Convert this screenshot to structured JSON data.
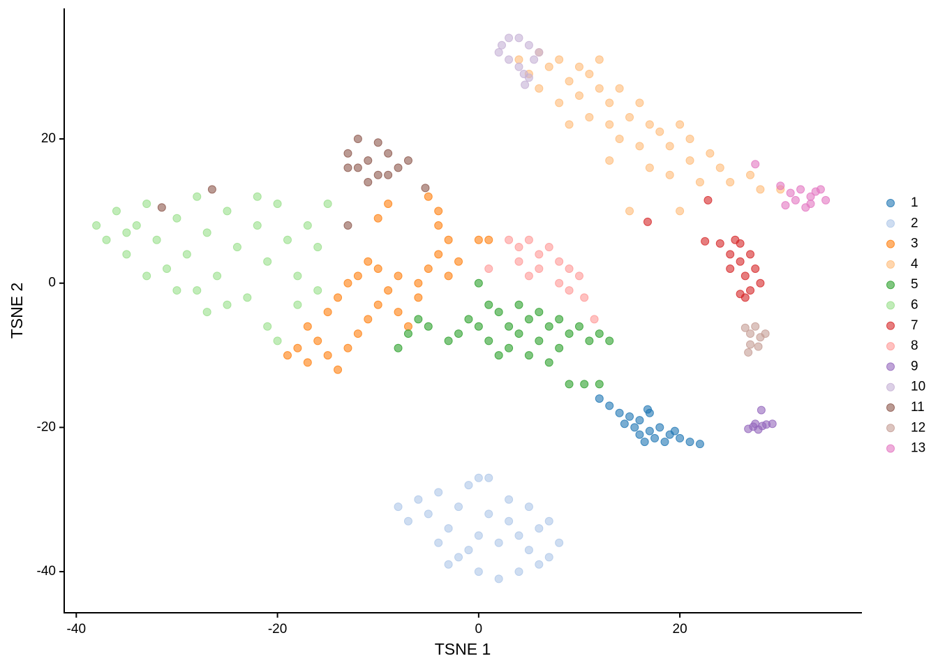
{
  "chart_data": {
    "type": "scatter",
    "x_label": "TSNE 1",
    "y_label": "TSNE 2",
    "xlim": [
      -41.2,
      38.1
    ],
    "ylim": [
      -45.7,
      38.1
    ],
    "xticks": [
      -40,
      -20,
      0,
      20
    ],
    "yticks": [
      -40,
      -20,
      0,
      20
    ],
    "legend": "right",
    "series": [
      {
        "name": "1",
        "color": "#1f77b4",
        "x": [
          12,
          13,
          14,
          14.5,
          15,
          15.5,
          16,
          16,
          16.5,
          17,
          17,
          17.5,
          18,
          18.5,
          19,
          19.5,
          20,
          21,
          22,
          16.8
        ],
        "y": [
          -16,
          -17,
          -18,
          -19.5,
          -18.5,
          -20,
          -21,
          -19,
          -22,
          -20.5,
          -18,
          -21.5,
          -20,
          -22,
          -21,
          -20.5,
          -21.5,
          -22,
          -22.3,
          -17.5
        ]
      },
      {
        "name": "2",
        "color": "#aec7e8",
        "x": [
          -8,
          -7,
          -6,
          -5,
          -4,
          -3,
          -2,
          -1,
          0,
          1,
          -4,
          -2,
          0,
          2,
          4,
          6,
          7,
          8,
          7,
          5,
          3,
          1,
          0,
          2,
          4,
          5,
          -1,
          -3,
          3,
          6
        ],
        "y": [
          -31,
          -33,
          -30,
          -32,
          -29,
          -34,
          -31,
          -28,
          -27,
          -27,
          -36,
          -38,
          -40,
          -41,
          -40,
          -39,
          -38,
          -36,
          -33,
          -31,
          -30,
          -32,
          -35,
          -36,
          -35,
          -37,
          -37,
          -39,
          -33,
          -34
        ]
      },
      {
        "name": "3",
        "color": "#ff7f0e",
        "x": [
          -19,
          -18,
          -17,
          -16,
          -15,
          -14,
          -13,
          -12,
          -11,
          -10,
          -9,
          -8,
          -7,
          -15,
          -14,
          -13,
          -12,
          -11,
          -10,
          -8,
          -6,
          -5,
          -4,
          -3,
          -4,
          -4,
          -5,
          -3,
          -2,
          0,
          1,
          -10,
          -9,
          -6,
          -17
        ],
        "y": [
          -10,
          -9,
          -11,
          -8,
          -10,
          -12,
          -9,
          -7,
          -5,
          -3,
          -1,
          -4,
          -6,
          -4,
          -2,
          0,
          1,
          3,
          2,
          1,
          0,
          2,
          4,
          6,
          8,
          10,
          12,
          1,
          3,
          6,
          6,
          9,
          11,
          -2,
          -6
        ]
      },
      {
        "name": "4",
        "color": "#ffbb78",
        "x": [
          4,
          5,
          6,
          7,
          8,
          9,
          10,
          11,
          12,
          6,
          8,
          10,
          12,
          13,
          14,
          9,
          11,
          13,
          15,
          16,
          17,
          14,
          16,
          18,
          19,
          20,
          21,
          17,
          19,
          21,
          23,
          24,
          22,
          25,
          27,
          28,
          30,
          13,
          15,
          20
        ],
        "y": [
          31,
          29,
          32,
          30,
          31,
          28,
          30,
          29,
          31,
          27,
          25,
          26,
          27,
          25,
          27,
          22,
          23,
          22,
          23,
          25,
          22,
          20,
          19,
          21,
          19,
          22,
          20,
          16,
          15,
          17,
          18,
          16,
          14,
          14,
          15,
          13,
          13,
          17,
          10,
          10
        ]
      },
      {
        "name": "5",
        "color": "#2ca02c",
        "x": [
          -8,
          -7,
          -6,
          -5,
          -3,
          -2,
          -1,
          0,
          1,
          1,
          2,
          2,
          3,
          3,
          4,
          4,
          5,
          5,
          6,
          6,
          7,
          7,
          8,
          8,
          9,
          10,
          11,
          12,
          13,
          9,
          10.5,
          12,
          0
        ],
        "y": [
          -9,
          -7,
          -5,
          -6,
          -8,
          -7,
          -5,
          -6,
          -3,
          -8,
          -4,
          -10,
          -6,
          -9,
          -3,
          -7,
          -5,
          -10,
          -4,
          -8,
          -6,
          -11,
          -5,
          -9,
          -7,
          -6,
          -8,
          -7,
          -8,
          -14,
          -14,
          -14,
          0
        ]
      },
      {
        "name": "6",
        "color": "#98df8a",
        "x": [
          -38,
          -37,
          -36,
          -35,
          -34,
          -33,
          -32,
          -31,
          -30,
          -29,
          -28,
          -28,
          -27,
          -26,
          -25,
          -24,
          -23,
          -22,
          -21,
          -20,
          -19,
          -18,
          -17,
          -16,
          -30,
          -27,
          -25,
          -33,
          -35,
          -22,
          -20,
          -21,
          -18,
          -16,
          -15
        ],
        "y": [
          8,
          6,
          10,
          4,
          8,
          11,
          6,
          2,
          9,
          4,
          12,
          -1,
          7,
          1,
          10,
          5,
          -2,
          8,
          3,
          11,
          6,
          1,
          8,
          5,
          -1,
          -4,
          -3,
          1,
          7,
          12,
          -8,
          -6,
          -3,
          -1,
          11
        ]
      },
      {
        "name": "7",
        "color": "#d62728",
        "x": [
          22.5,
          24,
          25,
          25.5,
          26,
          26.5,
          27,
          26,
          27.5,
          28,
          26,
          25,
          27,
          26.5,
          16.8,
          22.8
        ],
        "y": [
          5.8,
          5.5,
          4,
          6,
          3,
          1,
          -1,
          -1.5,
          2,
          0,
          5.5,
          2,
          4,
          -2,
          8.5,
          11.5
        ]
      },
      {
        "name": "8",
        "color": "#ff9896",
        "x": [
          3,
          4,
          5,
          6,
          7,
          8,
          9,
          10,
          6,
          5,
          8,
          9,
          4,
          1,
          10.5,
          11.5
        ],
        "y": [
          6,
          5,
          6,
          4,
          5,
          3,
          2,
          1,
          2,
          1,
          0,
          -1,
          3,
          2,
          -2,
          -5
        ]
      },
      {
        "name": "9",
        "color": "#9467bd",
        "x": [
          26.8,
          27.3,
          27.8,
          28.2,
          28.6,
          29.2,
          27.5,
          28.1
        ],
        "y": [
          -20.2,
          -19.9,
          -20.3,
          -19.8,
          -19.6,
          -19.5,
          -19.5,
          -17.6
        ]
      },
      {
        "name": "10",
        "color": "#c5b0d5",
        "x": [
          2.3,
          3,
          4,
          5,
          5.5,
          4,
          3,
          2,
          4.5,
          5,
          6,
          4.6
        ],
        "y": [
          33,
          34,
          34,
          33,
          31,
          30,
          31,
          32,
          29,
          28.5,
          32,
          27.5
        ]
      },
      {
        "name": "11",
        "color": "#8c564b",
        "x": [
          -13,
          -12,
          -11,
          -10,
          -9,
          -8,
          -7,
          -10,
          -12,
          -11,
          -9,
          -13,
          -26.5,
          -31.5,
          -13,
          -5.3
        ],
        "y": [
          18,
          20,
          17,
          19.5,
          18,
          16,
          17,
          15,
          16,
          14,
          15,
          16,
          13,
          10.5,
          8,
          13.2
        ]
      },
      {
        "name": "12",
        "color": "#c49c94",
        "x": [
          26.5,
          27,
          27.5,
          28,
          27,
          27.8,
          26.8,
          28.5
        ],
        "y": [
          -6.2,
          -7,
          -6,
          -7.5,
          -8.5,
          -8.8,
          -9.6,
          -7
        ]
      },
      {
        "name": "13",
        "color": "#e377c2",
        "x": [
          30,
          31,
          32,
          33,
          34,
          34.5,
          33,
          31.5,
          32.5,
          30.5,
          33.5,
          27.5
        ],
        "y": [
          13.5,
          12.5,
          13,
          12,
          13,
          11.5,
          11,
          11.5,
          10.5,
          10.8,
          12.7,
          16.5
        ]
      }
    ]
  }
}
